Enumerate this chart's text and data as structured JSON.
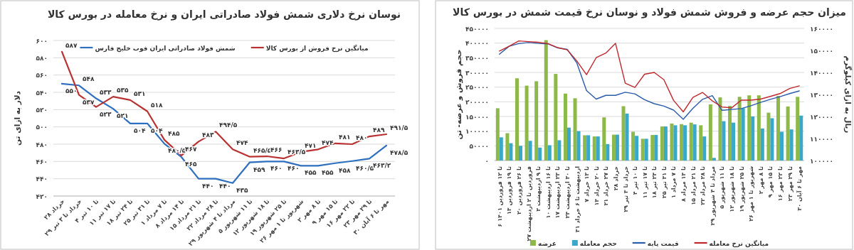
{
  "chart_data": [
    {
      "type": "line",
      "title": "نوسان نرخ دلاری شمش فولاد صادراتی ایران و نرخ معامله در بورس کالا",
      "ylabel": "دلار به ازای تن",
      "categories": [
        "۲۸ خرداد",
        "۲۹ خرداد تا ۳ تیر",
        "۴ تا ۱۰ تیر",
        "۱۱ تا ۱۷ تیر",
        "۱۸ تا ۲۴ تیر",
        "۲۵ تا ۳۱ تیر",
        "۱ تا ۷ مرداد",
        "۸ تا ۱۴ مرداد",
        "۱۵ تا ۲۱ مرداد",
        "۲۲ تا ۲۸ مرداد",
        "۲۹ مرداد تا ۴ شهریور",
        "۵ تا ۱۱ شهریور",
        "۱۲ تا ۱۸ شهریور",
        "۱۹ تا ۲۵ شهریور",
        "۲۶ شهریور تا ۱ مهر",
        "۲ تا ۸ مهر",
        "۹ تا ۱۵ مهر",
        "۱۶ تا ۲۲ مهر",
        "۲۳ تا ۲۹ مهر",
        "۳۰ مهر تا ۶ آبان"
      ],
      "series": [
        {
          "name": "شمش فولاد صادراتی ایران فوب خلیج فارس",
          "color": "#2e6fbf",
          "values": [
            550,
            548,
            533,
            521,
            504,
            504,
            480.5,
            465,
            440,
            440,
            435,
            459,
            460,
            460,
            455,
            455,
            458,
            460.5,
            463.2,
            478.5
          ],
          "value_labels": [
            "۵۵۰",
            "۵۴۸",
            "۵۳۳",
            "۵۲۱",
            "۵۰۴",
            "۵۰۴",
            "۴۸۰/۵",
            "۴۶۵",
            "۴۴۰",
            "۴۴۰",
            "۴۳۵",
            "۴۵۹",
            "۴۶۰",
            "۴۶۰",
            "۴۵۵",
            "۴۵۵",
            "۴۵۸",
            "۴۶۰/۵",
            "۴۶۳/۲",
            "۴۷۸/۵"
          ]
        },
        {
          "name": "میانگین نرخ فروش از بورس کالا",
          "color": "#b93232",
          "values": [
            587,
            537,
            523,
            535,
            531,
            518,
            485,
            467,
            483,
            494.5,
            474,
            465.5,
            466,
            463.5,
            471,
            474,
            481,
            480,
            489,
            491.5
          ],
          "value_labels": [
            "۵۸۷",
            "۵۳۷",
            "۵۲۳",
            "۵۳۵",
            "۵۳۱",
            "۵۱۸",
            "۴۸۵",
            "۴۶۷",
            "۴۸۳",
            "۴۹۴/۵",
            "۴۷۴",
            "۴۶۵/۵",
            "۴۶۶",
            "۴۶۳/۵",
            "۴۷۱",
            "۴۷۴",
            "۴۸۱",
            "۴۸۰",
            "۴۸۹",
            "۴۹۱/۵"
          ]
        }
      ],
      "ylim": [
        420,
        600
      ],
      "yticks": [
        {
          "value": 420,
          "label": "۴۲۰"
        },
        {
          "value": 440,
          "label": "۴۴۰"
        },
        {
          "value": 460,
          "label": "۴۶۰"
        },
        {
          "value": 480,
          "label": "۴۸۰"
        },
        {
          "value": 500,
          "label": "۵۰۰"
        },
        {
          "value": 520,
          "label": "۵۲۰"
        },
        {
          "value": 540,
          "label": "۵۴۰"
        },
        {
          "value": 560,
          "label": "۵۶۰"
        },
        {
          "value": 580,
          "label": "۵۸۰"
        },
        {
          "value": 600,
          "label": "۶۰۰"
        }
      ],
      "grid": "y",
      "legend": "top"
    },
    {
      "type": "bar",
      "title": "میزان حجم عرضه و فروش شمش فولاد و نوسان نرخ قیمت شمش در بورس کالا",
      "ylabel": "حجم فروش و عرضه- تن",
      "y2label": "ریال به ازای کیلوگرم",
      "categories": [
        "۶ تا ۱۲ فروردین ۱۴۰۱",
        "۱۳ تا ۱۹ فروردین",
        "۲۰ تا ۲۶ فروردین",
        "۲۷ فروردین تا ۲ اردیبهشت",
        "۳ تا ۹ اردیبهشت",
        "۱۰ تا ۱۶ اردیبهشت",
        "۱۷ تا ۲۳ اردیبهشت",
        "۲۴ تا ۳۰ اردیبهشت",
        "۳۱ اردیبهشت تا ۶ خرداد",
        "۷ تا ۱۳ خرداد",
        "۱۴ تا ۲۰ خرداد",
        "۲۱ تا ۲۷ خرداد",
        "۲۸ خرداد",
        "۲۹ خرداد تا ۳ تیر",
        "۴ تا ۱۰ تیر",
        "۱۱ تا ۱۷ تیر",
        "۱۸ تا ۲۴ تیر",
        "۲۵ تا ۳۱ تیر",
        "۱ تا ۷ مرداد",
        "۸ تا ۱۴ مرداد",
        "۱۵ تا ۲۱ مرداد",
        "۲۲ تا ۲۸ مرداد",
        "۲۹ مرداد تا ۴ شهریور",
        "۵ تا ۱۱ شهریور",
        "۱۲ تا ۱۸ شهریور",
        "۱۹ تا ۲۵ شهریور",
        "۲۶ شهریور تا ۱ مهر",
        "۲ تا ۸ مهر",
        "۹ تا ۱۵ مهر",
        "۱۶ تا ۲۲ مهر",
        "۲۳ تا ۲۹ مهر",
        "۳۰ مهر تا ۶ آبان"
      ],
      "series": [
        {
          "name": "عرضه",
          "color": "#8db84a",
          "values": [
            178000,
            93000,
            280000,
            255000,
            270000,
            410000,
            295000,
            228000,
            212000,
            86000,
            82000,
            147000,
            88000,
            185000,
            98000,
            74000,
            87000,
            116000,
            126000,
            124000,
            129000,
            120000,
            191000,
            215000,
            186000,
            217000,
            222000,
            222000,
            163000,
            220000,
            184000,
            217000
          ]
        },
        {
          "name": "حجم معامله",
          "color": "#3aa8c8",
          "values": [
            79000,
            59000,
            50000,
            67000,
            44000,
            52000,
            69000,
            112000,
            100000,
            86000,
            82000,
            56000,
            88000,
            160000,
            84000,
            74000,
            87000,
            116000,
            120000,
            120000,
            123000,
            82000,
            9000,
            134000,
            129000,
            178000,
            150000,
            109000,
            144000,
            98000,
            106000,
            153000
          ]
        },
        {
          "name": "قیمت پایه",
          "type": "line",
          "axis": "y2",
          "color": "#2a5caa",
          "values": [
            148300,
            151900,
            153100,
            153600,
            153200,
            153000,
            151200,
            150500,
            144300,
            131800,
            127900,
            129600,
            129600,
            131000,
            130300,
            127600,
            125800,
            124700,
            122900,
            118700,
            123700,
            127800,
            129500,
            122800,
            123200,
            123600,
            124900,
            126400,
            127800,
            129000,
            130400,
            131600
          ]
        },
        {
          "name": "میانگین نرخ معامله",
          "type": "line",
          "axis": "y2",
          "color": "#c0272d",
          "values": [
            149700,
            151900,
            154300,
            154000,
            153700,
            153100,
            151300,
            150300,
            145200,
            139000,
            146700,
            148800,
            153200,
            135100,
            133200,
            139200,
            140000,
            136700,
            127300,
            122100,
            128700,
            130900,
            127100,
            124300,
            123900,
            127400,
            127400,
            127900,
            129100,
            130400,
            132700,
            133900
          ]
        }
      ],
      "ylim": [
        0,
        450000
      ],
      "yticks": [
        {
          "value": 0,
          "label": "۰"
        },
        {
          "value": 50000,
          "label": "۵۰۰۰۰"
        },
        {
          "value": 100000,
          "label": "۱۰۰۰۰۰"
        },
        {
          "value": 150000,
          "label": "۱۵۰۰۰۰"
        },
        {
          "value": 200000,
          "label": "۲۰۰۰۰۰"
        },
        {
          "value": 250000,
          "label": "۲۵۰۰۰۰"
        },
        {
          "value": 300000,
          "label": "۳۰۰۰۰۰"
        },
        {
          "value": 350000,
          "label": "۳۵۰۰۰۰"
        },
        {
          "value": 400000,
          "label": "۴۰۰۰۰۰"
        },
        {
          "value": 450000,
          "label": "۴۵۰۰۰۰"
        }
      ],
      "y2lim": [
        100000,
        160000
      ],
      "y2ticks": [
        {
          "value": 100000,
          "label": "۱۰۰۰۰۰"
        },
        {
          "value": 110000,
          "label": "۱۱۰۰۰۰"
        },
        {
          "value": 120000,
          "label": "۱۲۰۰۰۰"
        },
        {
          "value": 130000,
          "label": "۱۳۰۰۰۰"
        },
        {
          "value": 140000,
          "label": "۱۴۰۰۰۰"
        },
        {
          "value": 150000,
          "label": "۱۵۰۰۰۰"
        },
        {
          "value": 160000,
          "label": "۱۶۰۰۰۰"
        }
      ],
      "grid": "y",
      "legend": "bottom"
    }
  ]
}
